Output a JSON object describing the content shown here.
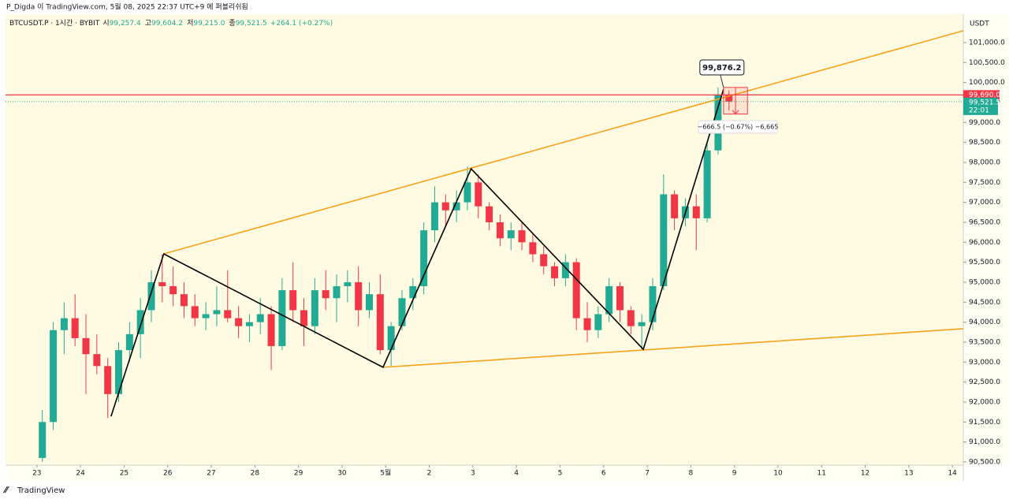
{
  "header": {
    "publisher": "P_Digda 이 TradingView.com, 5월 08, 2025 22:37 UTC+9 에 퍼블리쉬됨",
    "symbol": "BTCUSDT.P · 1시간 · BYBIT",
    "ohlc": [
      {
        "label": "시",
        "value": "99,257.4"
      },
      {
        "label": "고",
        "value": "99,604.2"
      },
      {
        "label": "저",
        "value": "99,215.0"
      },
      {
        "label": "종",
        "value": "99,521.5"
      }
    ],
    "change": "+264.1 (+0.27%)"
  },
  "chart_data": {
    "type": "candlestick",
    "currency": "USDT",
    "up_color": "#22ab94",
    "down_color": "#f23645",
    "x": [
      0.125,
      0.375,
      0.625,
      0.875,
      1.125,
      1.375,
      1.625,
      1.875,
      2.125,
      2.375,
      2.625,
      2.875,
      3.125,
      3.375,
      3.625,
      3.875,
      4.125,
      4.375,
      4.625,
      4.875,
      5.125,
      5.375,
      5.625,
      5.875,
      6.125,
      6.375,
      6.625,
      6.875,
      7.125,
      7.375,
      7.625,
      7.875,
      8.125,
      8.375,
      8.625,
      8.875,
      9.125,
      9.375,
      9.625,
      9.875,
      10.125,
      10.375,
      10.625,
      10.875,
      11.125,
      11.375,
      11.625,
      11.875,
      12.125,
      12.375,
      12.625,
      12.875,
      13.125,
      13.375,
      13.625,
      13.875,
      14.125,
      14.375,
      14.625,
      14.875,
      15.125,
      15.375,
      15.625,
      15.875
    ],
    "open": [
      90600,
      91500,
      93800,
      94100,
      93600,
      93200,
      92900,
      92200,
      93300,
      93700,
      94300,
      95000,
      94900,
      94700,
      94400,
      94100,
      94200,
      94300,
      94100,
      93900,
      94000,
      94200,
      93400,
      94800,
      94300,
      93900,
      94800,
      94600,
      94900,
      95000,
      94300,
      94700,
      93300,
      93900,
      94600,
      94900,
      96300,
      97000,
      96800,
      97000,
      97500,
      96900,
      96500,
      96100,
      96300,
      96000,
      95700,
      95400,
      95100,
      95500,
      94100,
      93800,
      94200,
      94900,
      94300,
      93900,
      94000,
      94900,
      97200,
      96600,
      96900,
      96600,
      98300,
      99700
    ],
    "high": [
      91800,
      94000,
      94500,
      94700,
      94200,
      93700,
      93100,
      93500,
      94000,
      94600,
      95300,
      95700,
      95400,
      95000,
      94700,
      94500,
      94900,
      95300,
      94400,
      94200,
      94600,
      94400,
      95100,
      95500,
      94600,
      95100,
      95300,
      95200,
      95300,
      95400,
      95000,
      95200,
      94000,
      94800,
      95100,
      96500,
      97400,
      97200,
      97300,
      97900,
      97700,
      97000,
      96700,
      96500,
      96500,
      96200,
      95900,
      95500,
      95700,
      95600,
      94500,
      94400,
      95100,
      95000,
      94400,
      94200,
      95100,
      97700,
      97300,
      97100,
      97200,
      98500,
      99876.2,
      99800
    ],
    "low": [
      90500,
      91300,
      93200,
      93400,
      92200,
      92700,
      91600,
      92000,
      93000,
      93100,
      94000,
      94500,
      94400,
      94100,
      93900,
      93800,
      93900,
      94000,
      93600,
      93500,
      93700,
      92800,
      93300,
      94000,
      93400,
      93700,
      94300,
      94000,
      94500,
      93900,
      94100,
      93200,
      92900,
      93800,
      94300,
      94700,
      96000,
      96400,
      96500,
      96800,
      96600,
      96300,
      95900,
      95800,
      95800,
      95500,
      95200,
      94900,
      94900,
      93800,
      93500,
      93600,
      94000,
      94000,
      93700,
      93300,
      93800,
      94800,
      96300,
      96400,
      95800,
      96500,
      98200,
      99300
    ],
    "close": [
      91500,
      93800,
      94100,
      93600,
      93200,
      92900,
      92200,
      93300,
      93700,
      94300,
      95000,
      94900,
      94700,
      94400,
      94100,
      94200,
      94300,
      94100,
      93900,
      94000,
      94200,
      93400,
      94800,
      94300,
      93900,
      94800,
      94600,
      94900,
      95000,
      94300,
      94700,
      93300,
      93900,
      94600,
      94900,
      96300,
      97000,
      96800,
      97000,
      97500,
      96900,
      96500,
      96100,
      96300,
      96000,
      95700,
      95400,
      95100,
      95500,
      94100,
      93800,
      94200,
      94900,
      94300,
      93900,
      94000,
      94900,
      97200,
      96600,
      96900,
      96600,
      98300,
      99700,
      99521.5
    ],
    "xlim": [
      -0.72,
      21.25
    ],
    "ylim": [
      90420,
      101710
    ],
    "xticks": [
      {
        "value": 0,
        "label": "23"
      },
      {
        "value": 1,
        "label": "24"
      },
      {
        "value": 2,
        "label": "25"
      },
      {
        "value": 3,
        "label": "26"
      },
      {
        "value": 4,
        "label": "27"
      },
      {
        "value": 5,
        "label": "28"
      },
      {
        "value": 6,
        "label": "29"
      },
      {
        "value": 7,
        "label": "30"
      },
      {
        "value": 8,
        "label": "5월"
      },
      {
        "value": 9,
        "label": "2"
      },
      {
        "value": 10,
        "label": "3"
      },
      {
        "value": 11,
        "label": "4"
      },
      {
        "value": 12,
        "label": "5"
      },
      {
        "value": 13,
        "label": "6"
      },
      {
        "value": 14,
        "label": "7"
      },
      {
        "value": 15,
        "label": "8"
      },
      {
        "value": 16,
        "label": "9"
      },
      {
        "value": 17,
        "label": "10"
      },
      {
        "value": 18,
        "label": "11"
      },
      {
        "value": 19,
        "label": "12"
      },
      {
        "value": 20,
        "label": "13"
      },
      {
        "value": 21,
        "label": "14"
      }
    ],
    "yticks": [
      {
        "value": 90500,
        "label": "90,500.0"
      },
      {
        "value": 91000,
        "label": "91,000.0"
      },
      {
        "value": 91500,
        "label": "91,500.0"
      },
      {
        "value": 92000,
        "label": "92,000.0"
      },
      {
        "value": 92500,
        "label": "92,500.0"
      },
      {
        "value": 93000,
        "label": "93,000.0"
      },
      {
        "value": 93500,
        "label": "93,500.0"
      },
      {
        "value": 94000,
        "label": "94,000.0"
      },
      {
        "value": 94500,
        "label": "94,500.0"
      },
      {
        "value": 95000,
        "label": "95,000.0"
      },
      {
        "value": 95500,
        "label": "95,500.0"
      },
      {
        "value": 96000,
        "label": "96,000.0"
      },
      {
        "value": 96500,
        "label": "96,500.0"
      },
      {
        "value": 97000,
        "label": "97,000.0"
      },
      {
        "value": 97500,
        "label": "97,500.0"
      },
      {
        "value": 98000,
        "label": "98,000.0"
      },
      {
        "value": 98500,
        "label": "98,500.0"
      },
      {
        "value": 99000,
        "label": "99,000.0"
      },
      {
        "value": 99500,
        "label": "99,500.0"
      },
      {
        "value": 100000,
        "label": "100,000.0"
      },
      {
        "value": 100500,
        "label": "100,500.0"
      },
      {
        "value": 101000,
        "label": "101,000.0"
      }
    ],
    "last_price": {
      "value": 99521.5,
      "label": "99,521.5"
    },
    "countdown": "22:01",
    "alert_line": {
      "value": 99690,
      "label": "99,690.0",
      "color": "#f23645"
    },
    "callout": {
      "x": 15.75,
      "value": 99876.2,
      "label": "99,876.2"
    },
    "zigzag": {
      "color": "#000000",
      "x": [
        1.7,
        2.91,
        7.94,
        9.96,
        13.91,
        15.75
      ],
      "y": [
        91640,
        95710,
        92870,
        97840,
        93320,
        99830
      ]
    },
    "channel": {
      "color": "#f7a21b",
      "upper": {
        "x": [
          2.91,
          21.25
        ],
        "y": [
          95710,
          101296
        ]
      },
      "lower": {
        "x": [
          7.94,
          21.25
        ],
        "y": [
          92870,
          93835
        ]
      }
    },
    "measure": {
      "text": "−666.5 (−0.67%) −6,665",
      "x": [
        15.75,
        16.3
      ],
      "y": [
        99876.2,
        99209.7
      ],
      "color": "#f23645"
    }
  },
  "footer": {
    "brand": "TradingView"
  }
}
